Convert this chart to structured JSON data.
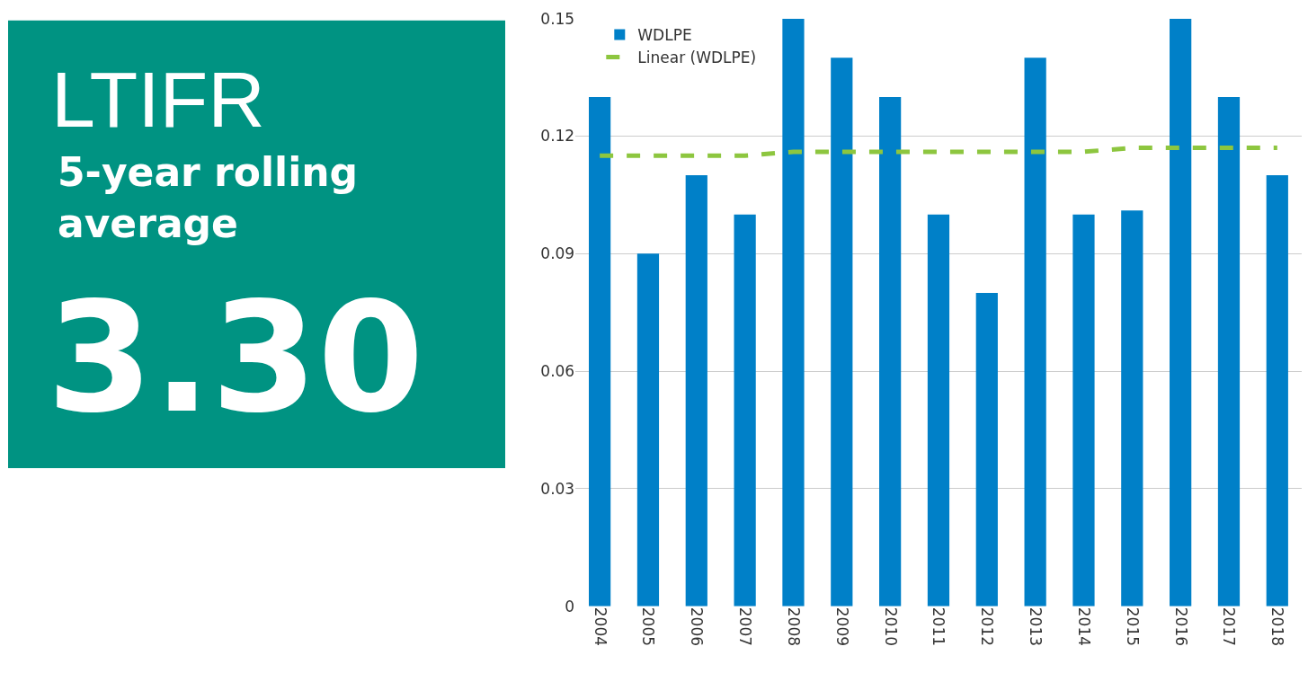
{
  "chart_data": [
    {
      "type": "other",
      "title": "LTIFR",
      "subtitle": "5-year rolling average",
      "annotations": [
        "3.30"
      ],
      "color": "#009382"
    },
    {
      "type": "bar",
      "categories": [
        "2004",
        "2005",
        "2006",
        "2007",
        "2008",
        "2009",
        "2010",
        "2011",
        "2012",
        "2013",
        "2014",
        "2015",
        "2016",
        "2017",
        "2018"
      ],
      "series": [
        {
          "name": "WDLPE",
          "color": "#0080c8",
          "values": [
            0.13,
            0.09,
            0.11,
            0.1,
            0.15,
            0.14,
            0.13,
            0.1,
            0.08,
            0.14,
            0.1,
            0.101,
            0.15,
            0.13,
            0.11
          ]
        },
        {
          "name": "Linear (WDLPE)",
          "type": "line",
          "color": "#8dc63f",
          "line_style": "dashed",
          "marker": "none",
          "values": [
            0.115,
            0.115,
            0.115,
            0.115,
            0.116,
            0.116,
            0.116,
            0.116,
            0.116,
            0.116,
            0.116,
            0.117,
            0.117,
            0.117,
            0.117
          ]
        }
      ],
      "ylim": [
        0,
        0.15
      ],
      "yticks": [
        0,
        0.03,
        0.06,
        0.09,
        0.12,
        0.15
      ],
      "grid": "y",
      "legend": "top left"
    }
  ]
}
